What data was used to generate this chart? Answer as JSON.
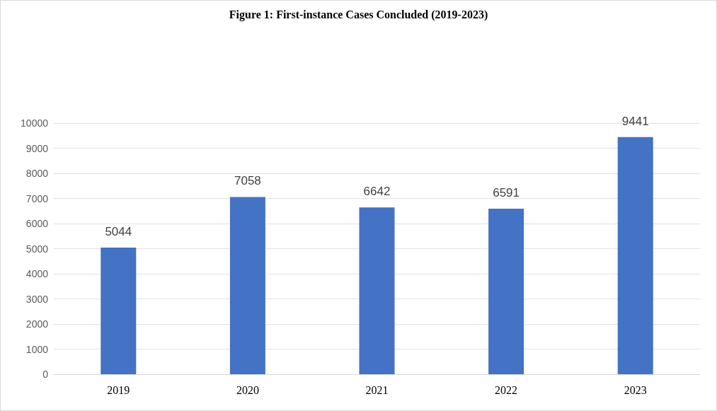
{
  "chart_data": {
    "type": "bar",
    "title": "Figure 1: First-instance Cases Concluded (2019-2023)",
    "categories": [
      "2019",
      "2020",
      "2021",
      "2022",
      "2023"
    ],
    "values": [
      5044,
      7058,
      6642,
      6591,
      9441
    ],
    "color": "#4472c4",
    "ylim": [
      0,
      10000
    ],
    "yticks": [
      0,
      1000,
      2000,
      3000,
      4000,
      5000,
      6000,
      7000,
      8000,
      9000,
      10000
    ],
    "grid": "y",
    "data_labels": true
  }
}
